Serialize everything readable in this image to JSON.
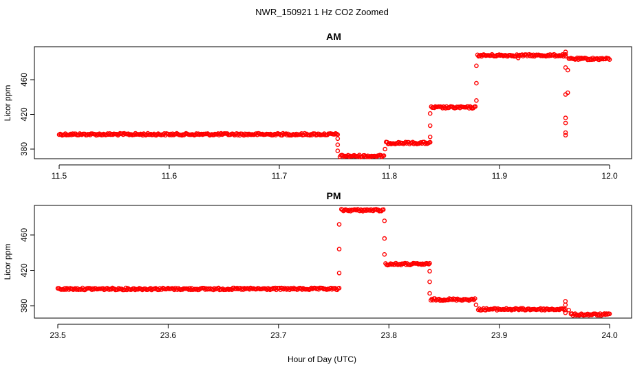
{
  "figure": {
    "title": "NWR_150921  1 Hz CO2 Zoomed",
    "xlabel": "Hour of Day (UTC)"
  },
  "colors": {
    "points": "#ff0000",
    "axes": "#000000",
    "background": "#ffffff"
  },
  "chart_data": [
    {
      "type": "scatter",
      "title": "AM",
      "xlabel": "Hour of Day (UTC)",
      "ylabel": "Licor ppm",
      "xlim": [
        11.5,
        12.0
      ],
      "ylim": [
        366,
        496
      ],
      "xticks": [
        "11.5",
        "11.6",
        "11.7",
        "11.8",
        "11.9",
        "12.0"
      ],
      "yticks": [
        "380",
        "420",
        "460"
      ],
      "grid": false,
      "marker": "open-circle",
      "segments": [
        {
          "x_start": 11.5,
          "x_end": 11.753,
          "y": 397
        },
        {
          "x_start": 11.755,
          "x_end": 11.795,
          "y": 372
        },
        {
          "x_start": 11.797,
          "x_end": 11.837,
          "y": 387
        },
        {
          "x_start": 11.838,
          "x_end": 11.878,
          "y": 428
        },
        {
          "x_start": 11.88,
          "x_end": 11.96,
          "y": 488
        },
        {
          "x_start": 11.963,
          "x_end": 12.0,
          "y": 484
        }
      ],
      "transitions": [
        {
          "x": 11.753,
          "y": [
            392,
            385,
            378
          ]
        },
        {
          "x": 11.796,
          "y": [
            380
          ]
        },
        {
          "x": 11.837,
          "y": [
            394,
            407,
            421
          ]
        },
        {
          "x": 11.879,
          "y": [
            436,
            456,
            476
          ]
        },
        {
          "x": 11.917,
          "y": [
            485
          ]
        },
        {
          "x": 11.96,
          "y": [
            492,
            487,
            474,
            443,
            416,
            410,
            399,
            396
          ]
        },
        {
          "x": 11.962,
          "y": [
            471,
            445
          ]
        }
      ]
    },
    {
      "type": "scatter",
      "title": "PM",
      "xlabel": "Hour of Day (UTC)",
      "ylabel": "Licor ppm",
      "xlim": [
        23.5,
        24.0
      ],
      "ylim": [
        368,
        496
      ],
      "xticks": [
        "23.5",
        "23.6",
        "23.7",
        "23.8",
        "23.9",
        "24.0"
      ],
      "yticks": [
        "380",
        "420",
        "460"
      ],
      "grid": false,
      "marker": "open-circle",
      "segments": [
        {
          "x_start": 23.5,
          "x_end": 23.755,
          "y": 399
        },
        {
          "x_start": 23.757,
          "x_end": 23.795,
          "y": 488
        },
        {
          "x_start": 23.797,
          "x_end": 23.837,
          "y": 427
        },
        {
          "x_start": 23.838,
          "x_end": 23.878,
          "y": 387
        },
        {
          "x_start": 23.881,
          "x_end": 23.96,
          "y": 376
        },
        {
          "x_start": 23.965,
          "x_end": 24.0,
          "y": 370
        }
      ],
      "transitions": [
        {
          "x": 23.755,
          "y": [
            417,
            444,
            472
          ]
        },
        {
          "x": 23.796,
          "y": [
            476,
            456,
            438
          ]
        },
        {
          "x": 23.837,
          "y": [
            419,
            407,
            394
          ]
        },
        {
          "x": 23.879,
          "y": [
            381
          ]
        },
        {
          "x": 23.96,
          "y": [
            385,
            381,
            372
          ]
        },
        {
          "x": 23.963,
          "y": [
            375
          ]
        }
      ]
    }
  ]
}
